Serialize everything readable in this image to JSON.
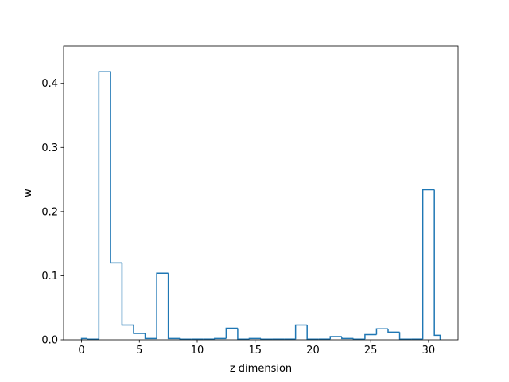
{
  "chart_data": {
    "type": "bar",
    "style": "step-histogram",
    "title": "",
    "xlabel": "z dimension",
    "ylabel": "w",
    "xlim": [
      -1.55,
      32.55
    ],
    "ylim": [
      0,
      0.458
    ],
    "xticks": [
      0,
      5,
      10,
      15,
      20,
      25,
      30
    ],
    "yticks": [
      0.0,
      0.1,
      0.2,
      0.3,
      0.4
    ],
    "ytick_labels": [
      "0.0",
      "0.1",
      "0.2",
      "0.3",
      "0.4"
    ],
    "grid": false,
    "legend": "none",
    "line_color": "#1f77b4",
    "bin_edges": [
      0,
      0.5,
      1.5,
      2.5,
      3.5,
      4.5,
      5.5,
      6.5,
      7.5,
      8.5,
      9.5,
      10.5,
      11.5,
      12.5,
      13.5,
      14.5,
      15.5,
      16.5,
      17.5,
      18.5,
      19.5,
      20.5,
      21.5,
      22.5,
      23.5,
      24.5,
      25.5,
      26.5,
      27.5,
      28.5,
      29.5,
      30.5,
      31
    ],
    "values": [
      0.002,
      0.001,
      0.418,
      0.12,
      0.023,
      0.01,
      0.002,
      0.104,
      0.002,
      0.001,
      0.001,
      0.001,
      0.002,
      0.018,
      0.001,
      0.002,
      0.001,
      0.001,
      0.001,
      0.023,
      0.001,
      0.001,
      0.005,
      0.002,
      0.001,
      0.008,
      0.017,
      0.012,
      0.001,
      0.001,
      0.234,
      0.007
    ]
  }
}
